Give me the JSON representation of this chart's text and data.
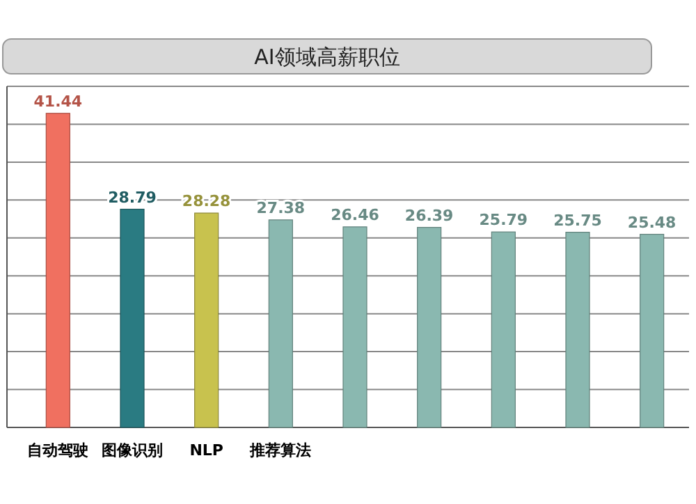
{
  "chart_data": {
    "type": "bar",
    "title": "AI领域高薪职位",
    "categories": [
      "自动驾驶",
      "图像识别",
      "NLP",
      "推荐算法",
      null,
      null,
      null,
      null,
      null
    ],
    "values": [
      41.44,
      28.79,
      28.28,
      27.38,
      26.46,
      26.39,
      25.79,
      25.75,
      25.48
    ],
    "colors": [
      "#f07060",
      "#2a7b82",
      "#c8c24e",
      "#8ab8b0",
      "#8ab8b0",
      "#8ab8b0",
      "#8ab8b0",
      "#8ab8b0",
      "#8ab8b0"
    ],
    "data_labels": true,
    "ylim": [
      0,
      45
    ],
    "yticks": [
      {
        "value": 0,
        "label": null
      },
      {
        "value": 5,
        "label": null
      },
      {
        "value": 10,
        "label": null
      },
      {
        "value": 15,
        "label": null
      },
      {
        "value": 20,
        "label": null
      },
      {
        "value": 25,
        "label": null
      },
      {
        "value": 30,
        "label": null
      },
      {
        "value": 35,
        "label": null
      },
      {
        "value": 40,
        "label": null
      },
      {
        "value": 45,
        "label": null
      }
    ],
    "grid": "y",
    "tick_labels": "x"
  }
}
